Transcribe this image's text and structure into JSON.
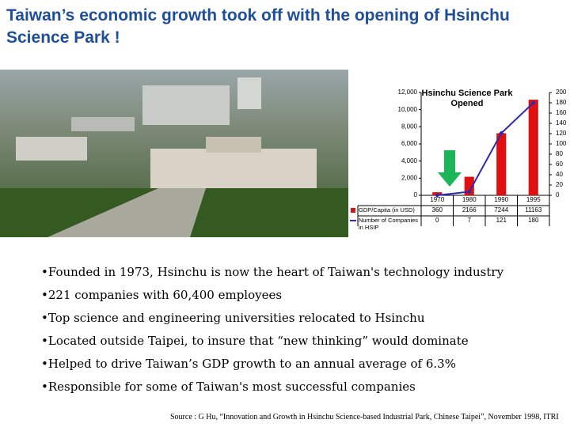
{
  "title": "Taiwan’s economic growth took off with the opening of Hsinchu Science Park !",
  "chart_data": {
    "type": "bar",
    "annotation": [
      "Hsinchu Science Park",
      "Opened"
    ],
    "categories": [
      "1970",
      "1980",
      "1990",
      "1995"
    ],
    "series": [
      {
        "name": "GDP/Capita (in USD)",
        "type": "bar",
        "color": "#e01010",
        "values": [
          360,
          2166,
          7244,
          11163
        ]
      },
      {
        "name": "Number of Companies in HSIP",
        "type": "line",
        "axis": "y2",
        "color": "#2b2bb0",
        "values": [
          0,
          7,
          121,
          180
        ]
      }
    ],
    "ylim": [
      0,
      12000
    ],
    "yticks": [
      0,
      {
        "value": 2000,
        "label": "2,000"
      },
      {
        "value": 4000,
        "label": "4,000"
      },
      {
        "value": 6000,
        "label": "6,000"
      },
      {
        "value": 8000,
        "label": "8,000"
      },
      {
        "value": 10000,
        "label": "10,000"
      },
      {
        "value": 12000,
        "label": "12,000"
      }
    ],
    "y2lim": [
      0,
      200
    ],
    "y2ticks": [
      0,
      20,
      40,
      60,
      80,
      100,
      120,
      140,
      160,
      180,
      200
    ]
  },
  "bullets": [
    "Founded in 1973, Hsinchu is now the heart of Taiwan's technology industry",
    "221 companies with 60,400 employees",
    "Top science and engineering universities relocated to Hsinchu",
    "Located outside Taipei, to insure that “new thinking” would dominate",
    "Helped to drive Taiwan’s GDP growth to an annual average of 6.3%",
    "Responsible for some of Taiwan's most successful companies"
  ],
  "source": "Source : G Hu, “Innovation and Growth in Hsinchu Science-based Industrial Park, Chinese Taipei”, November 1998, ITRI"
}
